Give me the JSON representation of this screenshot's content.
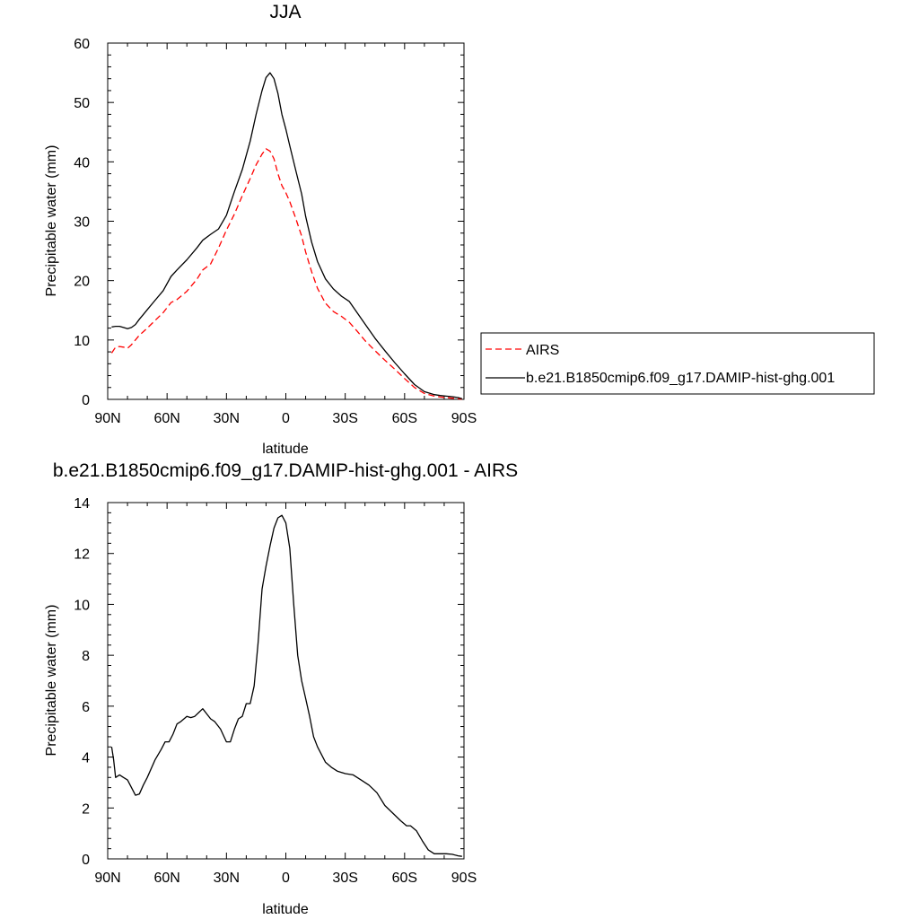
{
  "chart_data": [
    {
      "type": "line",
      "title": "JJA",
      "xlabel": "latitude",
      "ylabel": "Precipitable water (mm)",
      "xlim": [
        90,
        -90
      ],
      "ylim": [
        0,
        60
      ],
      "x_ticks": [
        90,
        60,
        30,
        0,
        -30,
        -60,
        -90
      ],
      "x_tick_labels": [
        "90N",
        "60N",
        "30N",
        "0",
        "30S",
        "60S",
        "90S"
      ],
      "y_ticks": [
        0,
        10,
        20,
        30,
        40,
        50,
        60
      ],
      "y_tick_labels": [
        "0",
        "10",
        "20",
        "30",
        "40",
        "50",
        "60"
      ],
      "grid": false,
      "legend_position": "right",
      "series": [
        {
          "name": "AIRS",
          "color": "#ff0000",
          "dashed": true,
          "x": [
            88,
            86,
            84,
            82,
            80,
            78,
            76,
            74,
            72,
            70,
            66,
            62,
            58,
            55,
            50,
            45,
            42,
            38,
            34,
            30,
            26,
            22,
            18,
            15,
            12,
            10,
            8,
            6,
            4,
            2,
            0,
            -2,
            -5,
            -8,
            -10,
            -13,
            -16,
            -20,
            -24,
            -28,
            -32,
            -36,
            -40,
            -45,
            -50,
            -55,
            -60,
            -65,
            -70,
            -75,
            -78,
            -81,
            -84,
            -87,
            -89
          ],
          "values": [
            7.8,
            8.8,
            8.9,
            8.8,
            8.6,
            9.2,
            10.0,
            10.8,
            11.4,
            12.0,
            13.3,
            14.6,
            16.3,
            16.8,
            18.2,
            20.2,
            21.8,
            22.8,
            25.5,
            28.5,
            31.2,
            34.3,
            37.2,
            39.5,
            41.3,
            42.2,
            41.8,
            40.5,
            38.0,
            36.0,
            34.8,
            33.3,
            30.5,
            27.5,
            24.8,
            21.5,
            18.7,
            16.2,
            14.8,
            14.0,
            13.0,
            11.5,
            9.9,
            8.2,
            6.6,
            5.1,
            3.5,
            2.0,
            1.0,
            0.55,
            0.4,
            0.3,
            0.2,
            0.1,
            0.05
          ]
        },
        {
          "name": "b.e21.B1850cmip6.f09_g17.DAMIP-hist-ghg.001",
          "color": "#000000",
          "dashed": false,
          "x": [
            88,
            86,
            84,
            82,
            80,
            78,
            76,
            74,
            72,
            70,
            66,
            62,
            58,
            55,
            50,
            45,
            42,
            38,
            34,
            30,
            26,
            22,
            18,
            15,
            12,
            10,
            8,
            6,
            4,
            2,
            0,
            -2,
            -5,
            -8,
            -10,
            -13,
            -16,
            -20,
            -24,
            -28,
            -32,
            -36,
            -40,
            -45,
            -50,
            -55,
            -60,
            -65,
            -70,
            -75,
            -78,
            -81,
            -84,
            -87,
            -89
          ],
          "values": [
            12.2,
            12.3,
            12.3,
            12.1,
            11.9,
            12.1,
            12.6,
            13.5,
            14.3,
            15.1,
            16.7,
            18.3,
            20.7,
            21.8,
            23.5,
            25.5,
            26.8,
            27.8,
            28.7,
            31.0,
            35.0,
            38.7,
            43.5,
            48.0,
            52.0,
            54.2,
            55.0,
            54.0,
            51.5,
            48.0,
            45.5,
            42.7,
            38.6,
            34.6,
            30.8,
            26.5,
            23.2,
            20.3,
            18.6,
            17.4,
            16.5,
            14.6,
            12.7,
            10.3,
            8.2,
            6.2,
            4.3,
            2.5,
            1.3,
            0.8,
            0.65,
            0.55,
            0.45,
            0.3,
            0.1
          ]
        }
      ]
    },
    {
      "type": "line",
      "title": "b.e21.B1850cmip6.f09_g17.DAMIP-hist-ghg.001 - AIRS",
      "xlabel": "latitude",
      "ylabel": "Precipitable water (mm)",
      "xlim": [
        90,
        -90
      ],
      "ylim": [
        0,
        14
      ],
      "x_ticks": [
        90,
        60,
        30,
        0,
        -30,
        -60,
        -90
      ],
      "x_tick_labels": [
        "90N",
        "60N",
        "30N",
        "0",
        "30S",
        "60S",
        "90S"
      ],
      "y_ticks": [
        0,
        2,
        4,
        6,
        8,
        10,
        12,
        14
      ],
      "y_tick_labels": [
        "0",
        "2",
        "4",
        "6",
        "8",
        "10",
        "12",
        "14"
      ],
      "grid": false,
      "series": [
        {
          "color": "#000000",
          "dashed": false,
          "x": [
            88,
            87,
            86,
            84,
            82,
            80,
            78,
            76,
            74,
            72,
            70,
            66,
            63,
            61,
            59,
            57,
            55,
            53,
            50,
            48,
            46,
            44,
            42,
            40,
            38,
            36,
            33,
            30,
            28,
            26,
            24,
            22,
            20,
            18,
            16,
            14,
            12,
            10,
            8,
            6,
            4,
            2,
            0,
            -2,
            -4,
            -6,
            -8,
            -10,
            -12,
            -14,
            -16,
            -18,
            -20,
            -23,
            -26,
            -30,
            -34,
            -38,
            -42,
            -46,
            -50,
            -54,
            -58,
            -61,
            -63,
            -66,
            -69,
            -72,
            -75,
            -78,
            -81,
            -84,
            -87,
            -89
          ],
          "values": [
            4.4,
            3.9,
            3.2,
            3.3,
            3.2,
            3.1,
            2.8,
            2.5,
            2.55,
            2.9,
            3.2,
            3.9,
            4.3,
            4.6,
            4.6,
            4.9,
            5.3,
            5.4,
            5.6,
            5.55,
            5.6,
            5.75,
            5.9,
            5.7,
            5.5,
            5.4,
            5.1,
            4.6,
            4.6,
            5.1,
            5.5,
            5.6,
            6.1,
            6.1,
            6.8,
            8.5,
            10.6,
            11.5,
            12.3,
            13.0,
            13.4,
            13.5,
            13.2,
            12.2,
            10.0,
            8.0,
            7.0,
            6.3,
            5.6,
            4.8,
            4.4,
            4.1,
            3.8,
            3.6,
            3.45,
            3.35,
            3.3,
            3.1,
            2.9,
            2.6,
            2.1,
            1.8,
            1.5,
            1.3,
            1.3,
            1.1,
            0.7,
            0.35,
            0.2,
            0.2,
            0.2,
            0.18,
            0.12,
            0.1
          ]
        }
      ]
    }
  ]
}
